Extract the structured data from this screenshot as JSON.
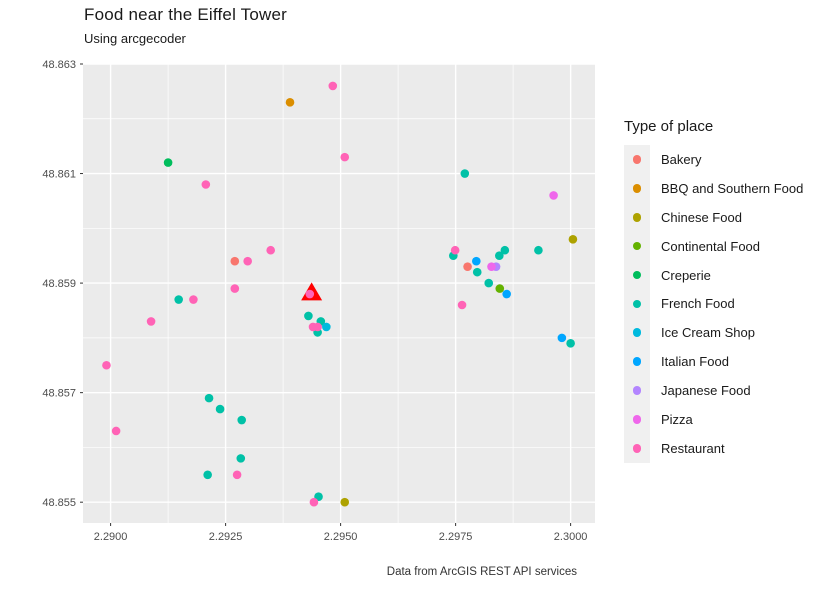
{
  "header": {
    "title": "Food near the Eiffel Tower",
    "subtitle": "Using arcgecoder"
  },
  "caption": "Data from ArcGIS REST API services",
  "legend": {
    "title": "Type of place",
    "position": "right"
  },
  "chart_data": {
    "type": "scatter",
    "title": "Food near the Eiffel Tower",
    "subtitle": "Using arcgecoder",
    "xlabel": "",
    "ylabel": "",
    "xlim": [
      2.2894,
      2.30053
    ],
    "ylim": [
      48.85462,
      48.863
    ],
    "x_ticks": [
      "2.2900",
      "2.2925",
      "2.2950",
      "2.2975",
      "2.3000"
    ],
    "y_ticks": [
      "48.855",
      "48.857",
      "48.859",
      "48.861",
      "48.863"
    ],
    "x_minor": [
      2.29125,
      2.29375,
      2.29625,
      2.29875
    ],
    "y_minor": [
      48.856,
      48.858,
      48.86,
      48.862
    ],
    "panel_bg": "#EBEBEB",
    "grid_color": "#FFFFFF",
    "axis_text_color": "#4D4D4D",
    "tick_mark_color": "#333333",
    "point_radius": 4.3,
    "eiffel_marker": {
      "x": 2.29437,
      "y": 48.85884,
      "color": "#FF0000",
      "shape": "triangle"
    },
    "series": [
      {
        "name": "Bakery",
        "color": "#F8766D",
        "points": [
          [
            2.2927,
            48.8594
          ],
          [
            2.29776,
            48.8593
          ]
        ]
      },
      {
        "name": "BBQ and Southern Food",
        "color": "#DB8E00",
        "points": [
          [
            2.2939,
            48.8623
          ]
        ]
      },
      {
        "name": "Chinese Food",
        "color": "#AEA200",
        "points": [
          [
            2.30005,
            48.8598
          ],
          [
            2.29509,
            48.855
          ]
        ]
      },
      {
        "name": "Continental Food",
        "color": "#64B200",
        "points": [
          [
            2.29846,
            48.8589
          ]
        ]
      },
      {
        "name": "Creperie",
        "color": "#00BD5C",
        "points": [
          [
            2.29125,
            48.8612
          ]
        ]
      },
      {
        "name": "French Food",
        "color": "#00C1A7",
        "points": [
          [
            2.29148,
            48.8587
          ],
          [
            2.2943,
            48.8584
          ],
          [
            2.29457,
            48.8583
          ],
          [
            2.2945,
            48.8581
          ],
          [
            2.29214,
            48.8569
          ],
          [
            2.29238,
            48.8567
          ],
          [
            2.29285,
            48.8565
          ],
          [
            2.29283,
            48.8558
          ],
          [
            2.29211,
            48.8555
          ],
          [
            2.29452,
            48.8551
          ],
          [
            2.2977,
            48.861
          ],
          [
            2.29745,
            48.8595
          ],
          [
            2.29845,
            48.8595
          ],
          [
            2.29857,
            48.8596
          ],
          [
            2.29797,
            48.8592
          ],
          [
            2.29822,
            48.859
          ],
          [
            2.2993,
            48.8596
          ],
          [
            2.3,
            48.8579
          ]
        ]
      },
      {
        "name": "Ice Cream Shop",
        "color": "#00BADE",
        "points": [
          [
            2.29469,
            48.8582
          ]
        ]
      },
      {
        "name": "Italian Food",
        "color": "#00A6FF",
        "points": [
          [
            2.29795,
            48.8594
          ],
          [
            2.29861,
            48.8588
          ],
          [
            2.29981,
            48.858
          ]
        ]
      },
      {
        "name": "Japanese Food",
        "color": "#B385FF",
        "points": [
          [
            2.29838,
            48.8593
          ]
        ]
      },
      {
        "name": "Pizza",
        "color": "#EF67EB",
        "points": [
          [
            2.29963,
            48.8606
          ],
          [
            2.29828,
            48.8593
          ]
        ]
      },
      {
        "name": "Restaurant",
        "color": "#FF63B6",
        "points": [
          [
            2.29483,
            48.8626
          ],
          [
            2.29509,
            48.8613
          ],
          [
            2.29207,
            48.8608
          ],
          [
            2.29348,
            48.8596
          ],
          [
            2.29298,
            48.8594
          ],
          [
            2.2927,
            48.8589
          ],
          [
            2.2918,
            48.8587
          ],
          [
            2.29088,
            48.8583
          ],
          [
            2.29433,
            48.8588
          ],
          [
            2.2944,
            48.8582
          ],
          [
            2.2945,
            48.8582
          ],
          [
            2.28991,
            48.8575
          ],
          [
            2.29012,
            48.8563
          ],
          [
            2.29275,
            48.8555
          ],
          [
            2.29442,
            48.855
          ],
          [
            2.29749,
            48.8596
          ],
          [
            2.29764,
            48.8586
          ]
        ]
      }
    ]
  }
}
